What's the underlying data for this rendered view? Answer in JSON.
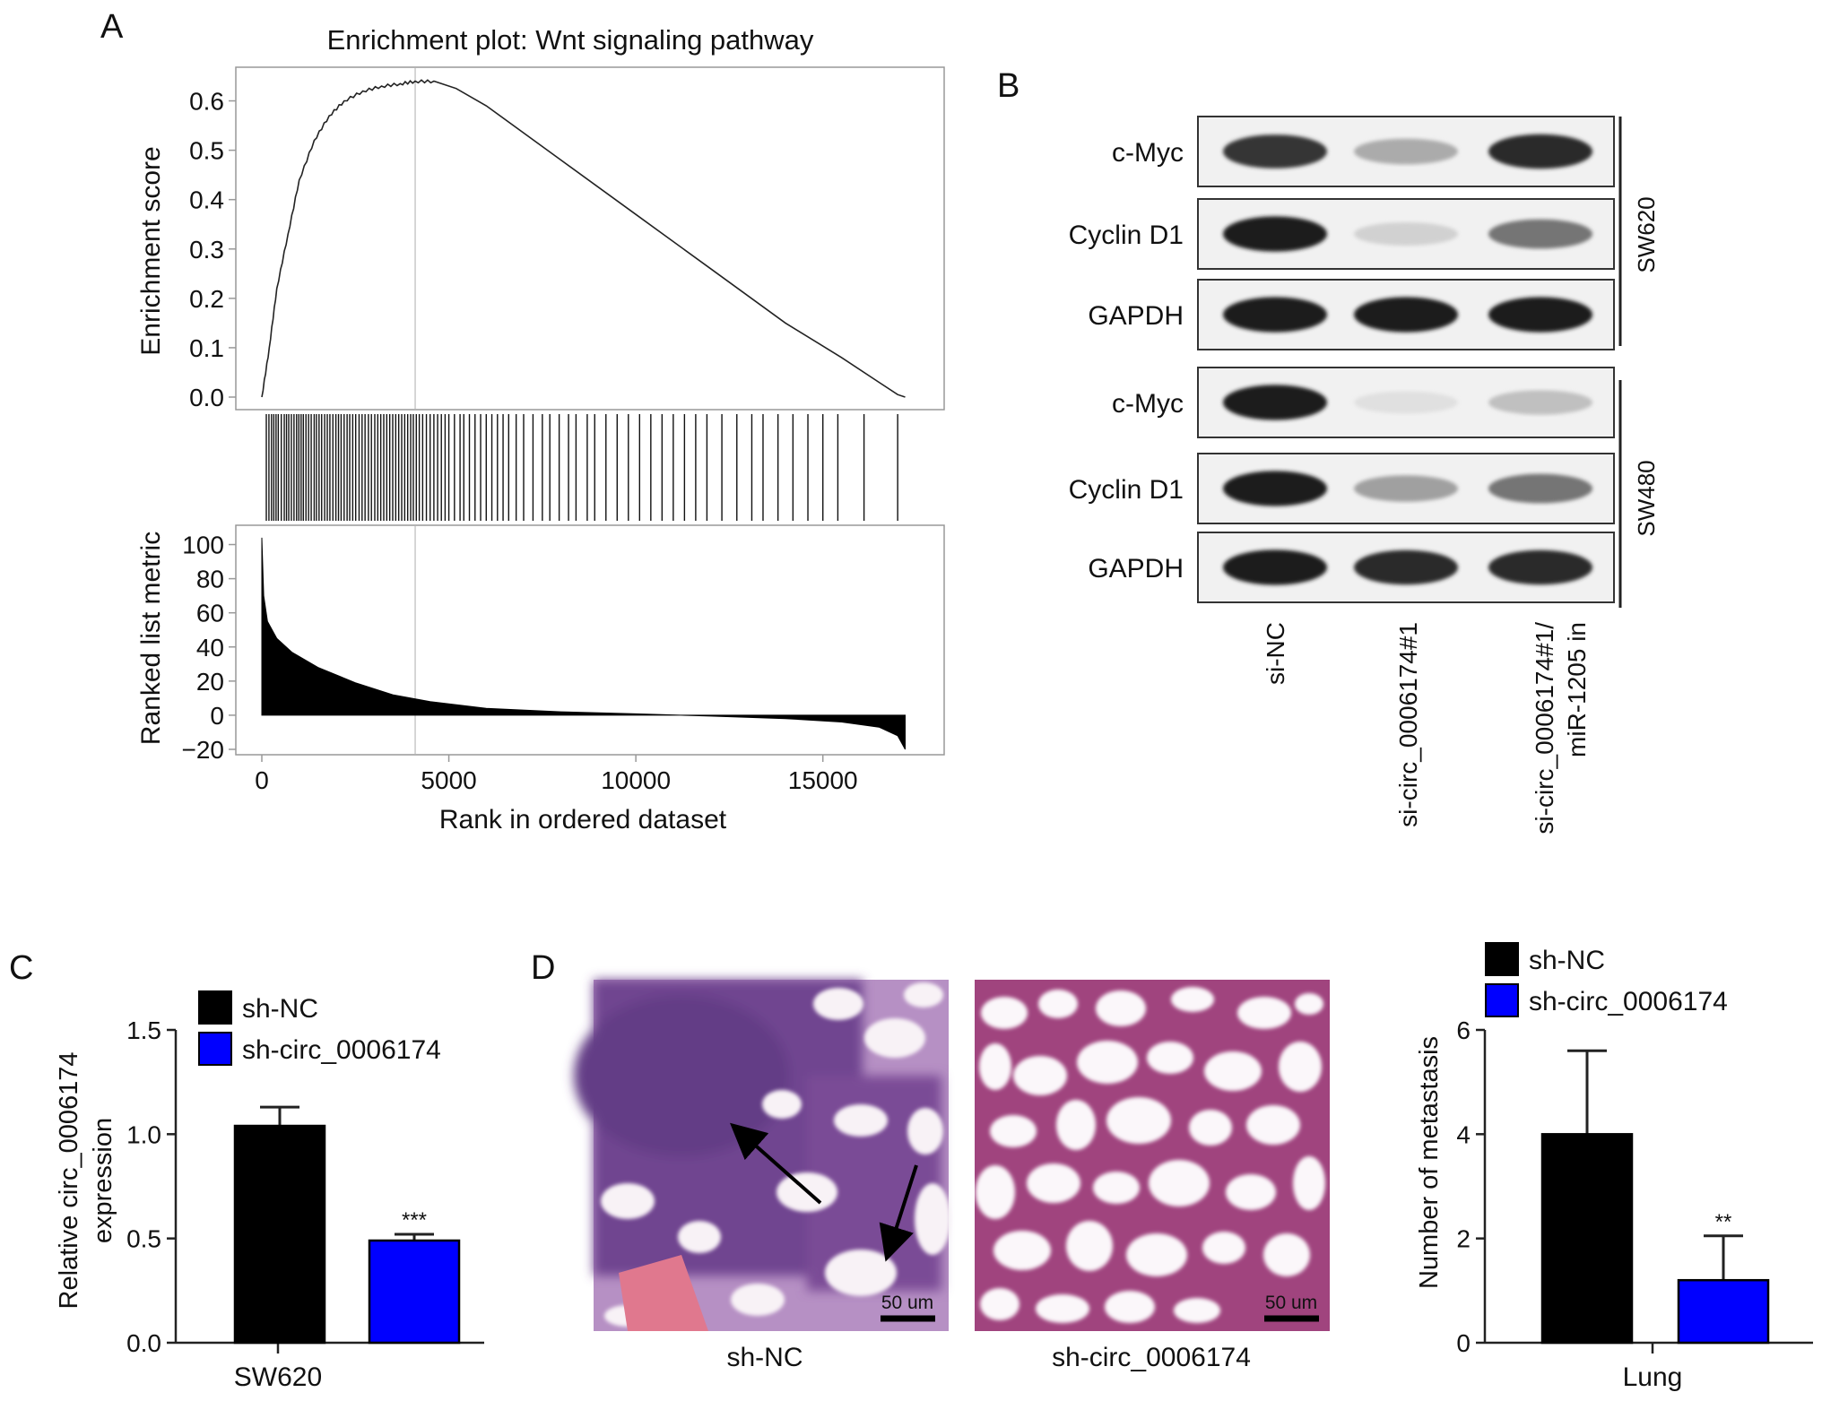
{
  "panel_letters": {
    "a": "A",
    "b": "B",
    "c": "C",
    "d": "D"
  },
  "chart_data": [
    {
      "id": "A",
      "type": "line",
      "title": "Enrichment plot: Wnt signaling pathway",
      "xlabel": "Rank in ordered dataset",
      "es_ylabel": "Enrichment score",
      "metric_ylabel": "Ranked list metric",
      "xlim": [
        0,
        17500
      ],
      "x_ticks": [
        0,
        5000,
        10000,
        15000
      ],
      "x_tick_labels": [
        "0",
        "5000",
        "10000",
        "15000"
      ],
      "es_ylim": [
        0.0,
        0.65
      ],
      "es_ticks": [
        0.0,
        0.1,
        0.2,
        0.3,
        0.4,
        0.5,
        0.6
      ],
      "es_tick_labels": [
        "0.0",
        "0.1",
        "0.2",
        "0.3",
        "0.4",
        "0.5",
        "0.6"
      ],
      "metric_ylim": [
        -20,
        105
      ],
      "metric_ticks": [
        -20,
        0,
        20,
        40,
        60,
        80,
        100
      ],
      "metric_tick_labels": [
        "−20",
        "0",
        "20",
        "40",
        "60",
        "80",
        "100"
      ],
      "peak_rank": 4100,
      "es_curve": [
        {
          "x": 0,
          "y": 0.0
        },
        {
          "x": 200,
          "y": 0.1
        },
        {
          "x": 400,
          "y": 0.22
        },
        {
          "x": 700,
          "y": 0.33
        },
        {
          "x": 1000,
          "y": 0.44
        },
        {
          "x": 1400,
          "y": 0.52
        },
        {
          "x": 1800,
          "y": 0.57
        },
        {
          "x": 2200,
          "y": 0.6
        },
        {
          "x": 2700,
          "y": 0.62
        },
        {
          "x": 3200,
          "y": 0.63
        },
        {
          "x": 3700,
          "y": 0.635
        },
        {
          "x": 4100,
          "y": 0.64
        },
        {
          "x": 4600,
          "y": 0.64
        },
        {
          "x": 5200,
          "y": 0.625
        },
        {
          "x": 6000,
          "y": 0.59
        },
        {
          "x": 8000,
          "y": 0.48
        },
        {
          "x": 10000,
          "y": 0.37
        },
        {
          "x": 12000,
          "y": 0.26
        },
        {
          "x": 14000,
          "y": 0.15
        },
        {
          "x": 15500,
          "y": 0.08
        },
        {
          "x": 16500,
          "y": 0.03
        },
        {
          "x": 17000,
          "y": 0.005
        },
        {
          "x": 17200,
          "y": 0.0
        }
      ],
      "hit_ranks": [
        120,
        190,
        260,
        320,
        380,
        440,
        520,
        600,
        660,
        720,
        790,
        860,
        930,
        990,
        1050,
        1110,
        1180,
        1250,
        1320,
        1400,
        1460,
        1530,
        1600,
        1680,
        1750,
        1820,
        1900,
        1980,
        2050,
        2120,
        2200,
        2280,
        2350,
        2430,
        2510,
        2600,
        2680,
        2760,
        2850,
        2930,
        3020,
        3100,
        3180,
        3260,
        3340,
        3420,
        3500,
        3580,
        3660,
        3740,
        3820,
        3900,
        3980,
        4050,
        4130,
        4210,
        4300,
        4400,
        4500,
        4600,
        4700,
        4800,
        4900,
        5000,
        5150,
        5300,
        5400,
        5550,
        5700,
        5850,
        6000,
        6150,
        6300,
        6450,
        6600,
        6800,
        7000,
        7250,
        7500,
        7700,
        7950,
        8200,
        8400,
        8700,
        8900,
        9200,
        9500,
        9800,
        10100,
        10400,
        10700,
        11000,
        11300,
        11600,
        11900,
        12300,
        12700,
        13100,
        13400,
        13800,
        14200,
        14600,
        15000,
        15400,
        16100,
        17000
      ],
      "metric_curve": [
        {
          "x": 0,
          "y": 104
        },
        {
          "x": 50,
          "y": 70
        },
        {
          "x": 150,
          "y": 55
        },
        {
          "x": 400,
          "y": 45
        },
        {
          "x": 800,
          "y": 37
        },
        {
          "x": 1500,
          "y": 28
        },
        {
          "x": 2500,
          "y": 19
        },
        {
          "x": 3500,
          "y": 12
        },
        {
          "x": 4500,
          "y": 8
        },
        {
          "x": 6000,
          "y": 4
        },
        {
          "x": 8000,
          "y": 2
        },
        {
          "x": 10000,
          "y": 0.8
        },
        {
          "x": 12000,
          "y": -0.5
        },
        {
          "x": 14000,
          "y": -2
        },
        {
          "x": 15500,
          "y": -4
        },
        {
          "x": 16500,
          "y": -7
        },
        {
          "x": 17000,
          "y": -12
        },
        {
          "x": 17200,
          "y": -20
        }
      ]
    },
    {
      "id": "C",
      "type": "bar",
      "categories": [
        "SW620"
      ],
      "series": [
        {
          "name": "sh-NC",
          "values": [
            1.04
          ],
          "errors": [
            0.09
          ],
          "color": "#000000"
        },
        {
          "name": "sh-circ_0006174",
          "values": [
            0.49
          ],
          "errors": [
            0.03
          ],
          "color": "#0000ff",
          "sig": "***"
        }
      ],
      "ylabel_line1": "Relative circ_0006174",
      "ylabel_line2": "expression",
      "ylim": [
        0,
        1.5
      ],
      "y_ticks": [
        0,
        0.5,
        1.0,
        1.5
      ],
      "y_tick_labels": [
        "0.0",
        "0.5",
        "1.0",
        "1.5"
      ],
      "legend_position": "top-left"
    },
    {
      "id": "D",
      "type": "bar",
      "categories": [
        "Lung"
      ],
      "series": [
        {
          "name": "sh-NC",
          "values": [
            4.0
          ],
          "errors": [
            1.6
          ],
          "color": "#000000"
        },
        {
          "name": "sh-circ_0006174",
          "values": [
            1.2
          ],
          "errors": [
            0.85
          ],
          "color": "#0000ff",
          "sig": "**"
        }
      ],
      "ylabel": "Number of metastasis",
      "ylim": [
        0,
        6
      ],
      "y_ticks": [
        0,
        2,
        4,
        6
      ],
      "y_tick_labels": [
        "0",
        "2",
        "4",
        "6"
      ],
      "legend_position": "top"
    }
  ],
  "western_blot": {
    "lane_labels": [
      "si-NC",
      "si-circ_0006174#1",
      "si-circ_0006174#1/",
      "miR-1205 in"
    ],
    "rows": [
      {
        "protein": "c-Myc",
        "cell_line": "SW620",
        "intensities": [
          0.85,
          0.3,
          0.9
        ]
      },
      {
        "protein": "Cyclin D1",
        "cell_line": "SW620",
        "intensities": [
          0.95,
          0.12,
          0.55
        ]
      },
      {
        "protein": "GAPDH",
        "cell_line": "SW620",
        "intensities": [
          0.95,
          0.95,
          0.95
        ]
      },
      {
        "protein": "c-Myc",
        "cell_line": "SW480",
        "intensities": [
          0.95,
          0.05,
          0.2
        ]
      },
      {
        "protein": "Cyclin D1",
        "cell_line": "SW480",
        "intensities": [
          0.95,
          0.35,
          0.55
        ]
      },
      {
        "protein": "GAPDH",
        "cell_line": "SW480",
        "intensities": [
          0.95,
          0.9,
          0.9
        ]
      }
    ],
    "cell_line_labels": [
      "SW620",
      "SW480"
    ]
  },
  "histology": {
    "images": [
      {
        "caption": "sh-NC",
        "scale_bar": "50 um"
      },
      {
        "caption": "sh-circ_0006174",
        "scale_bar": "50 um"
      }
    ]
  },
  "colors": {
    "sh_nc": "#000000",
    "sh_circ": "#0000ff",
    "tissue_dense": "#7a4a9a",
    "tissue_light": "#c8608a"
  }
}
